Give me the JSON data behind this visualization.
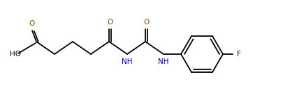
{
  "bg_color": "#ffffff",
  "line_color": "#000000",
  "o_color": "#8B4500",
  "n_color": "#00008B",
  "f_color": "#00008B",
  "line_width": 1.3,
  "font_size": 7.5,
  "fig_w": 4.05,
  "fig_h": 1.47,
  "dpi": 100,
  "xlim": [
    0,
    405
  ],
  "ylim": [
    0,
    147
  ]
}
